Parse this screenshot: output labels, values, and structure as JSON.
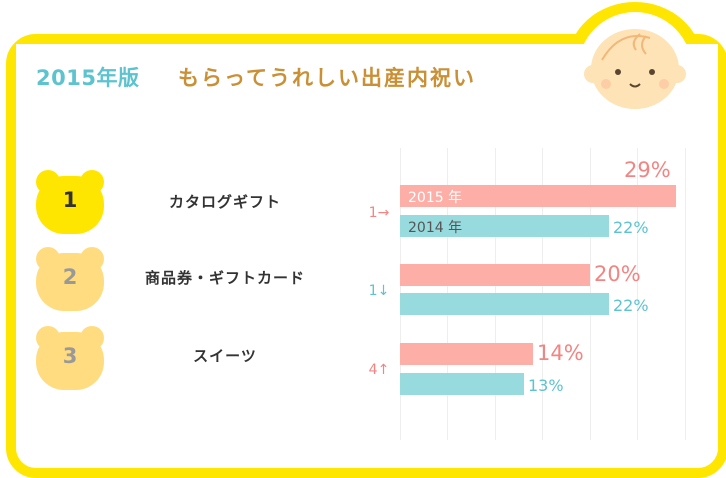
{
  "header": {
    "year_label": "2015年版",
    "title": "もらってうれしい出産内祝い"
  },
  "ranks": [
    {
      "number": "1",
      "label": "カタログギフト",
      "change": "1→"
    },
    {
      "number": "2",
      "label": "商品券・ギフトカード",
      "change": "1↓"
    },
    {
      "number": "3",
      "label": "スイーツ",
      "change": "4↑"
    }
  ],
  "colors": {
    "frame": "#ffe600",
    "bar_2015": "#fdaea6",
    "bar_2014": "#97dbde",
    "rank1_badge": "#ffe600",
    "rank_other_badge": "#ffdc80"
  },
  "chart_data": {
    "type": "bar",
    "orientation": "horizontal",
    "categories": [
      "カタログギフト",
      "商品券・ギフトカード",
      "スイーツ"
    ],
    "series": [
      {
        "name": "2015 年",
        "values": [
          29,
          20,
          14
        ],
        "labels": [
          "29%",
          "20%",
          "14%"
        ]
      },
      {
        "name": "2014 年",
        "values": [
          22,
          22,
          13
        ],
        "labels": [
          "22%",
          "22%",
          "13%"
        ]
      }
    ],
    "xlim": [
      0,
      30
    ],
    "grid": true
  }
}
